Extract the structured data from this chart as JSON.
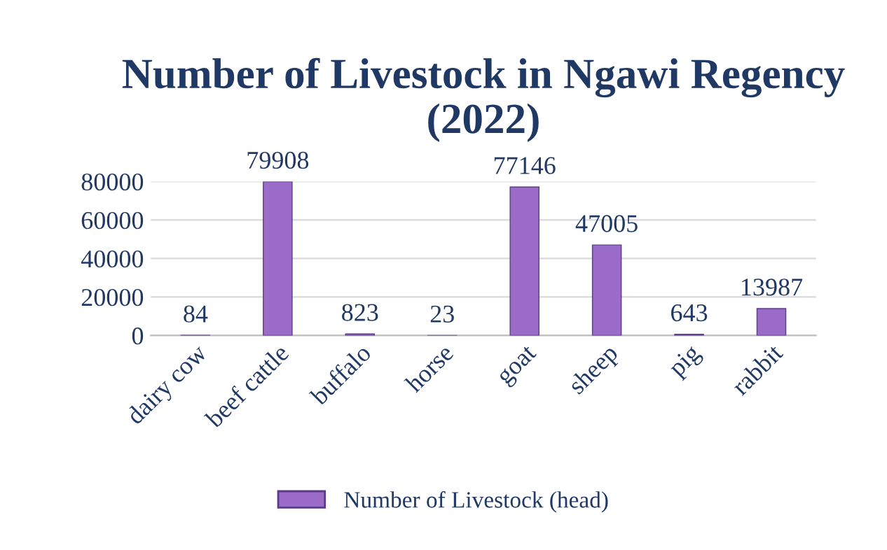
{
  "chart_data": {
    "type": "bar",
    "title": "Number of Livestock in Ngawi Regency (2022)",
    "categories": [
      "dairy cow",
      "beef cattle",
      "buffalo",
      "horse",
      "goat",
      "sheep",
      "pig",
      "rabbit"
    ],
    "series": [
      {
        "name": "Number of Livestock (head)",
        "color": "#9a6cc8",
        "values": [
          84,
          79908,
          823,
          23,
          77146,
          47005,
          643,
          13987
        ]
      }
    ],
    "ylim": [
      0,
      80000
    ],
    "yticks": [
      0,
      20000,
      40000,
      60000,
      80000
    ],
    "grid": "y",
    "legend": "bottom",
    "data_labels": true
  }
}
